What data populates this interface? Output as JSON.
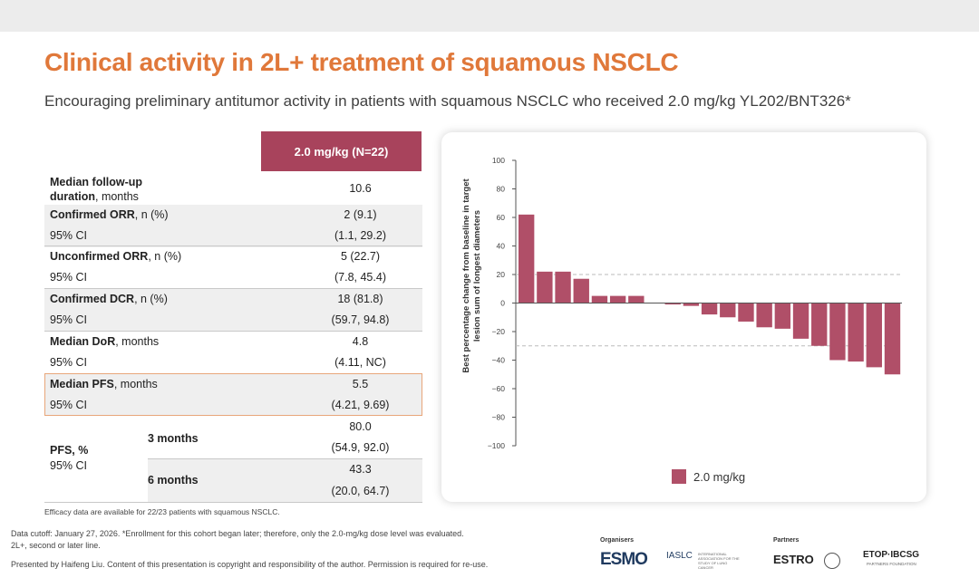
{
  "slide": {
    "title": "Clinical activity in 2L+ treatment of squamous NSCLC",
    "subtitle": "Encouraging preliminary antitumor activity in patients with squamous NSCLC who received 2.0 mg/kg YL202/BNT326*"
  },
  "table": {
    "header": "2.0 mg/kg (N=22)",
    "rows": [
      {
        "bold": "Median follow-up",
        "bold2": "duration",
        "rest": ", months",
        "value": "10.6"
      },
      {
        "bold": "Confirmed ORR",
        "rest": ", n (%)",
        "value": "2 (9.1)"
      },
      {
        "label": "95% CI",
        "value": "(1.1, 29.2)"
      },
      {
        "bold": "Unconfirmed ORR",
        "rest": ", n (%)",
        "value": "5 (22.7)"
      },
      {
        "label": "95% CI",
        "value": "(7.8, 45.4)"
      },
      {
        "bold": "Confirmed DCR",
        "rest": ", n (%)",
        "value": "18 (81.8)"
      },
      {
        "label": "95% CI",
        "value": "(59.7, 94.8)"
      },
      {
        "bold": "Median DoR",
        "rest": ", months",
        "value": "4.8"
      },
      {
        "label": "95% CI",
        "value": "(4.11, NC)"
      },
      {
        "bold": "Median PFS",
        "rest": ", months",
        "value": "5.5"
      },
      {
        "label": "95% CI",
        "value": "(4.21, 9.69)"
      }
    ],
    "pfs": {
      "label_bold": "PFS, %",
      "label_ci": "95% CI",
      "m3_label": "3 months",
      "m3_value": "80.0",
      "m3_ci": "(54.9, 92.0)",
      "m6_label": "6 months",
      "m6_value": "43.3",
      "m6_ci": "(20.0, 64.7)"
    },
    "note": "Efficacy data are available for 22/23 patients with squamous NSCLC."
  },
  "chart_data": {
    "type": "bar",
    "title": "",
    "ylabel": "Best percentage change from baseline in target lesion sum of longest diameters",
    "xlabel": "",
    "ylim": [
      -100,
      100
    ],
    "yticks": [
      "100",
      "80",
      "60",
      "40",
      "20",
      "0",
      "−20",
      "−40",
      "−60",
      "−80",
      "−100"
    ],
    "reference_lines": [
      20,
      -30
    ],
    "series": [
      {
        "name": "2.0 mg/kg",
        "color": "#b04f68",
        "values": [
          62,
          22,
          22,
          17,
          5,
          5,
          5,
          0,
          -1,
          -2,
          -8,
          -10,
          -13,
          -17,
          -18,
          -25,
          -30,
          -40,
          -41,
          -45,
          -50
        ]
      }
    ],
    "legend": "2.0 mg/kg"
  },
  "footer": {
    "line1": "Data cutoff: January 27, 2026. *Enrollment for this cohort began later; therefore, only the 2.0-mg/kg dose level was evaluated.",
    "line2": "2L+, second or later line.",
    "line3": "Presented by Haifeng Liu. Content of this presentation is copyright and responsibility of the author. Permission is required for re-use.",
    "organisers": "Organisers",
    "partners": "Partners",
    "esmo": "ESMO",
    "iaslc": "IASLC",
    "iaslc_small": "INTERNATIONAL ASSOCIATION FOR THE STUDY OF LUNG CANCER",
    "estro": "ESTRO",
    "etop": "ETOP·IBCSG",
    "etop_small": "PARTNERS FOUNDATION"
  }
}
